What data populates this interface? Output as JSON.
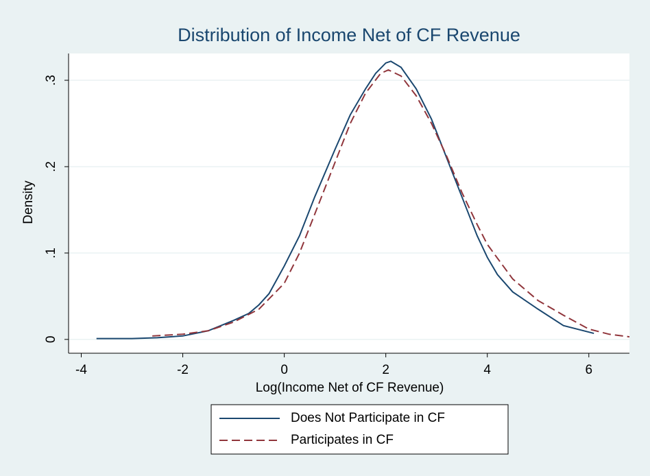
{
  "chart_data": {
    "type": "line",
    "title": "Distribution of Income Net of CF Revenue",
    "x_label": "Log(Income Net of CF Revenue)",
    "y_label": "Density",
    "xlim": [
      -4.25,
      6.8
    ],
    "ylim": [
      -0.016,
      0.331
    ],
    "xticks": [
      -4,
      -2,
      0,
      2,
      4,
      6
    ],
    "yticks": [
      0,
      {
        "value": 0.1,
        "label": ".1"
      },
      {
        "value": 0.2,
        "label": ".2"
      },
      {
        "value": 0.3,
        "label": ".3"
      }
    ],
    "grid": true,
    "legend": "bottom",
    "series": [
      {
        "name": "Does Not Participate in CF",
        "color": "#1a476f",
        "dash": false,
        "x": [
          -3.7,
          -3,
          -2.5,
          -2,
          -1.5,
          -1,
          -0.7,
          -0.5,
          -0.3,
          0,
          0.3,
          0.6,
          1,
          1.3,
          1.6,
          1.8,
          2,
          2.1,
          2.3,
          2.6,
          2.9,
          3.2,
          3.5,
          3.8,
          4,
          4.2,
          4.5,
          5,
          5.5,
          6.1
        ],
        "values": [
          0.001,
          0.001,
          0.002,
          0.004,
          0.01,
          0.022,
          0.03,
          0.04,
          0.053,
          0.085,
          0.12,
          0.165,
          0.22,
          0.26,
          0.29,
          0.308,
          0.32,
          0.322,
          0.315,
          0.29,
          0.255,
          0.21,
          0.165,
          0.12,
          0.095,
          0.075,
          0.055,
          0.035,
          0.016,
          0.007
        ]
      },
      {
        "name": "Participates in CF",
        "color": "#90353b",
        "dash": true,
        "x": [
          -2.6,
          -2,
          -1.5,
          -1,
          -0.5,
          0,
          0.3,
          0.6,
          1,
          1.3,
          1.6,
          1.9,
          2.05,
          2.3,
          2.6,
          2.9,
          3.2,
          3.5,
          3.8,
          4,
          4.5,
          5,
          5.5,
          6,
          6.4,
          6.8
        ],
        "values": [
          0.004,
          0.006,
          0.01,
          0.02,
          0.035,
          0.065,
          0.1,
          0.145,
          0.205,
          0.25,
          0.285,
          0.308,
          0.312,
          0.305,
          0.282,
          0.25,
          0.212,
          0.17,
          0.133,
          0.11,
          0.07,
          0.045,
          0.028,
          0.012,
          0.006,
          0.003
        ]
      }
    ]
  }
}
